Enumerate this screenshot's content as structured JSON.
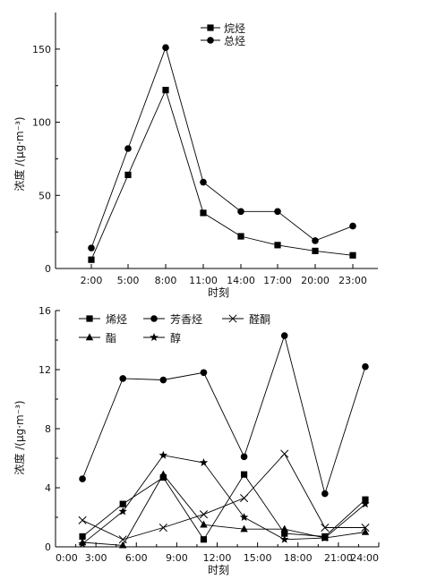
{
  "chart_data": [
    {
      "type": "line",
      "xlabel": "时刻",
      "ylabel": "浓度 /(μg·m⁻³)",
      "categories": [
        "2:00",
        "5:00",
        "8:00",
        "11:00",
        "14:00",
        "17:00",
        "20:00",
        "23:00"
      ],
      "ylim": [
        0,
        175
      ],
      "yticks": [
        0,
        50,
        100,
        150
      ],
      "grid": false,
      "legend": "top-center",
      "series": [
        {
          "name": "烷烃",
          "marker": "square",
          "values": [
            6,
            64,
            122,
            38,
            22,
            16,
            12,
            9
          ]
        },
        {
          "name": "总烃",
          "marker": "circle",
          "values": [
            14,
            82,
            151,
            59,
            39,
            39,
            19,
            29
          ]
        }
      ]
    },
    {
      "type": "line",
      "xlabel": "时刻",
      "ylabel": "浓度 /(μg·m⁻³)",
      "xlim": [
        0,
        24
      ],
      "xticks": [
        "0:00",
        "3:00",
        "6:00",
        "9:00",
        "12:00",
        "15:00",
        "18:00",
        "21:00",
        "24:00"
      ],
      "ylim": [
        0,
        16
      ],
      "yticks": [
        0,
        4,
        8,
        12,
        16
      ],
      "grid": false,
      "legend": "top-left",
      "series": [
        {
          "name": "烯烃",
          "marker": "square",
          "x": [
            2,
            5,
            8,
            11,
            14,
            17,
            20,
            23
          ],
          "values": [
            0.7,
            2.9,
            4.7,
            0.5,
            4.9,
            0.9,
            0.7,
            3.2
          ]
        },
        {
          "name": "芳香烃",
          "marker": "circle",
          "x": [
            2,
            5,
            8,
            11,
            14,
            17,
            20,
            23
          ],
          "values": [
            4.6,
            11.4,
            11.3,
            11.8,
            6.1,
            14.3,
            3.6,
            12.2
          ]
        },
        {
          "name": "醛酮",
          "marker": "cross",
          "x": [
            2,
            5,
            8,
            11,
            14,
            17,
            20,
            23
          ],
          "values": [
            1.8,
            0.5,
            1.3,
            2.2,
            3.3,
            6.3,
            1.3,
            1.3
          ]
        },
        {
          "name": "酯",
          "marker": "triangle",
          "x": [
            2,
            5,
            8,
            11,
            14,
            17,
            20,
            23
          ],
          "values": [
            0.3,
            0.1,
            4.9,
            1.5,
            1.2,
            1.2,
            0.6,
            1.0
          ]
        },
        {
          "name": "醇",
          "marker": "star",
          "x": [
            2,
            5,
            8,
            11,
            14,
            17,
            20,
            23
          ],
          "values": [
            0.2,
            2.4,
            6.2,
            5.7,
            2.0,
            0.5,
            0.6,
            2.9
          ]
        }
      ]
    }
  ]
}
